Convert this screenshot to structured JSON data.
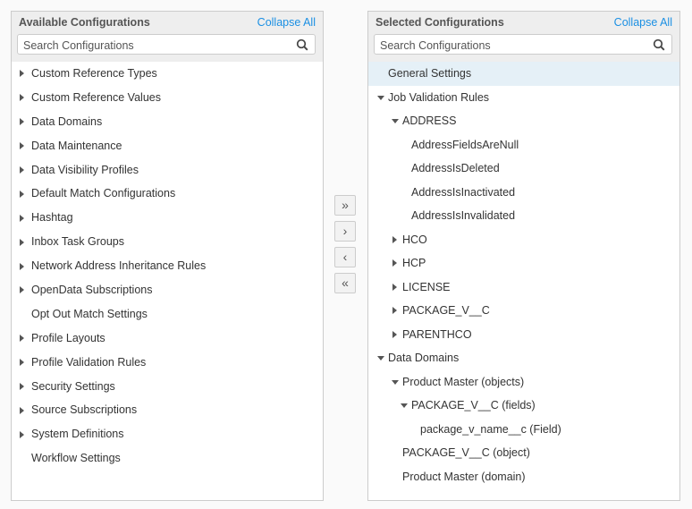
{
  "available": {
    "title": "Available Configurations",
    "collapse_label": "Collapse All",
    "search_placeholder": "Search Configurations",
    "items": [
      {
        "label": "Custom Reference Types",
        "expandable": true
      },
      {
        "label": "Custom Reference Values",
        "expandable": true
      },
      {
        "label": "Data Domains",
        "expandable": true
      },
      {
        "label": "Data Maintenance",
        "expandable": true
      },
      {
        "label": "Data Visibility Profiles",
        "expandable": true
      },
      {
        "label": "Default Match Configurations",
        "expandable": true
      },
      {
        "label": "Hashtag",
        "expandable": true
      },
      {
        "label": "Inbox Task Groups",
        "expandable": true
      },
      {
        "label": "Network Address Inheritance Rules",
        "expandable": true
      },
      {
        "label": "OpenData Subscriptions",
        "expandable": true
      },
      {
        "label": "Opt Out Match Settings",
        "expandable": false
      },
      {
        "label": "Profile Layouts",
        "expandable": true
      },
      {
        "label": "Profile Validation Rules",
        "expandable": true
      },
      {
        "label": "Security Settings",
        "expandable": true
      },
      {
        "label": "Source Subscriptions",
        "expandable": true
      },
      {
        "label": "System Definitions",
        "expandable": true
      },
      {
        "label": "Workflow Settings",
        "expandable": false
      }
    ]
  },
  "transfer_buttons": [
    {
      "name": "move-all-right-button",
      "icon": "»"
    },
    {
      "name": "move-right-button",
      "icon": "›"
    },
    {
      "name": "move-left-button",
      "icon": "‹"
    },
    {
      "name": "move-all-left-button",
      "icon": "«"
    }
  ],
  "selected": {
    "title": "Selected Configurations",
    "collapse_label": "Collapse All",
    "search_placeholder": "Search Configurations",
    "items": [
      {
        "label": "General Settings",
        "level": 0,
        "state": "none",
        "selected": true
      },
      {
        "label": "Job Validation Rules",
        "level": 0,
        "state": "expanded"
      },
      {
        "label": "ADDRESS",
        "level": 1,
        "state": "expanded"
      },
      {
        "label": "AddressFieldsAreNull",
        "level": 2,
        "state": "none"
      },
      {
        "label": "AddressIsDeleted",
        "level": 2,
        "state": "none"
      },
      {
        "label": "AddressIsInactivated",
        "level": 2,
        "state": "none"
      },
      {
        "label": "AddressIsInvalidated",
        "level": 2,
        "state": "none"
      },
      {
        "label": "HCO",
        "level": 1,
        "state": "collapsed"
      },
      {
        "label": "HCP",
        "level": 1,
        "state": "collapsed"
      },
      {
        "label": "LICENSE",
        "level": 1,
        "state": "collapsed"
      },
      {
        "label": "PACKAGE_V__C",
        "level": 1,
        "state": "collapsed"
      },
      {
        "label": "PARENTHCO",
        "level": 1,
        "state": "collapsed"
      },
      {
        "label": "Data Domains",
        "level": 0,
        "state": "expanded"
      },
      {
        "label": "Product Master (objects)",
        "level": 1,
        "state": "expanded"
      },
      {
        "label": "PACKAGE_V__C (fields)",
        "level": 2,
        "state": "expanded",
        "indent": "fields"
      },
      {
        "label": "package_v_name__c (Field)",
        "level": 3,
        "state": "none"
      },
      {
        "label": "PACKAGE_V__C (object)",
        "level": 2,
        "state": "none"
      },
      {
        "label": "Product Master (domain)",
        "level": 1,
        "state": "none"
      }
    ]
  }
}
